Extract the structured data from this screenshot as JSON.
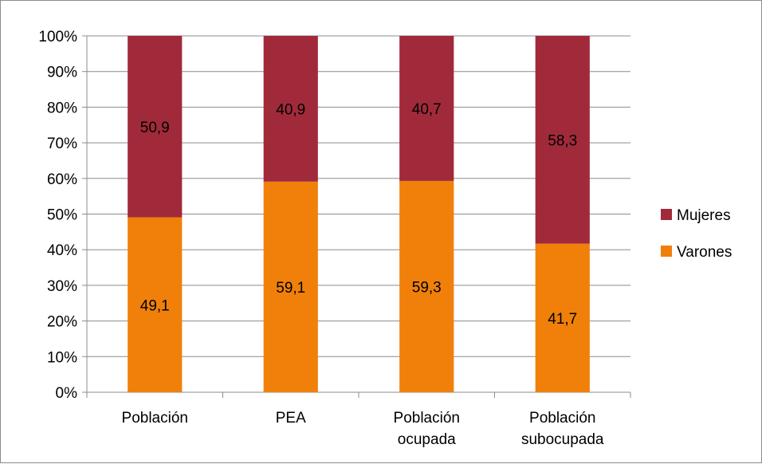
{
  "chart_data": {
    "type": "bar",
    "stacked": true,
    "percent_stacked": true,
    "categories": [
      [
        "Población"
      ],
      [
        "PEA"
      ],
      [
        "Población",
        "ocupada"
      ],
      [
        "Población",
        "subocupada"
      ]
    ],
    "series": [
      {
        "name": "Varones",
        "values": [
          49.1,
          59.1,
          59.3,
          41.7
        ],
        "labels": [
          "49,1",
          "59,1",
          "59,3",
          "41,7"
        ],
        "color": "#F0800A"
      },
      {
        "name": "Mujeres",
        "values": [
          50.9,
          40.9,
          40.7,
          58.3
        ],
        "labels": [
          "50,9",
          "40,9",
          "40,7",
          "58,3"
        ],
        "color": "#A12A3A"
      }
    ],
    "y_ticks": [
      "0%",
      "10%",
      "20%",
      "30%",
      "40%",
      "50%",
      "60%",
      "70%",
      "80%",
      "90%",
      "100%"
    ],
    "ylim": [
      0,
      100
    ],
    "grid": true,
    "legend": {
      "position": "right",
      "order": [
        "Mujeres",
        "Varones"
      ]
    }
  }
}
